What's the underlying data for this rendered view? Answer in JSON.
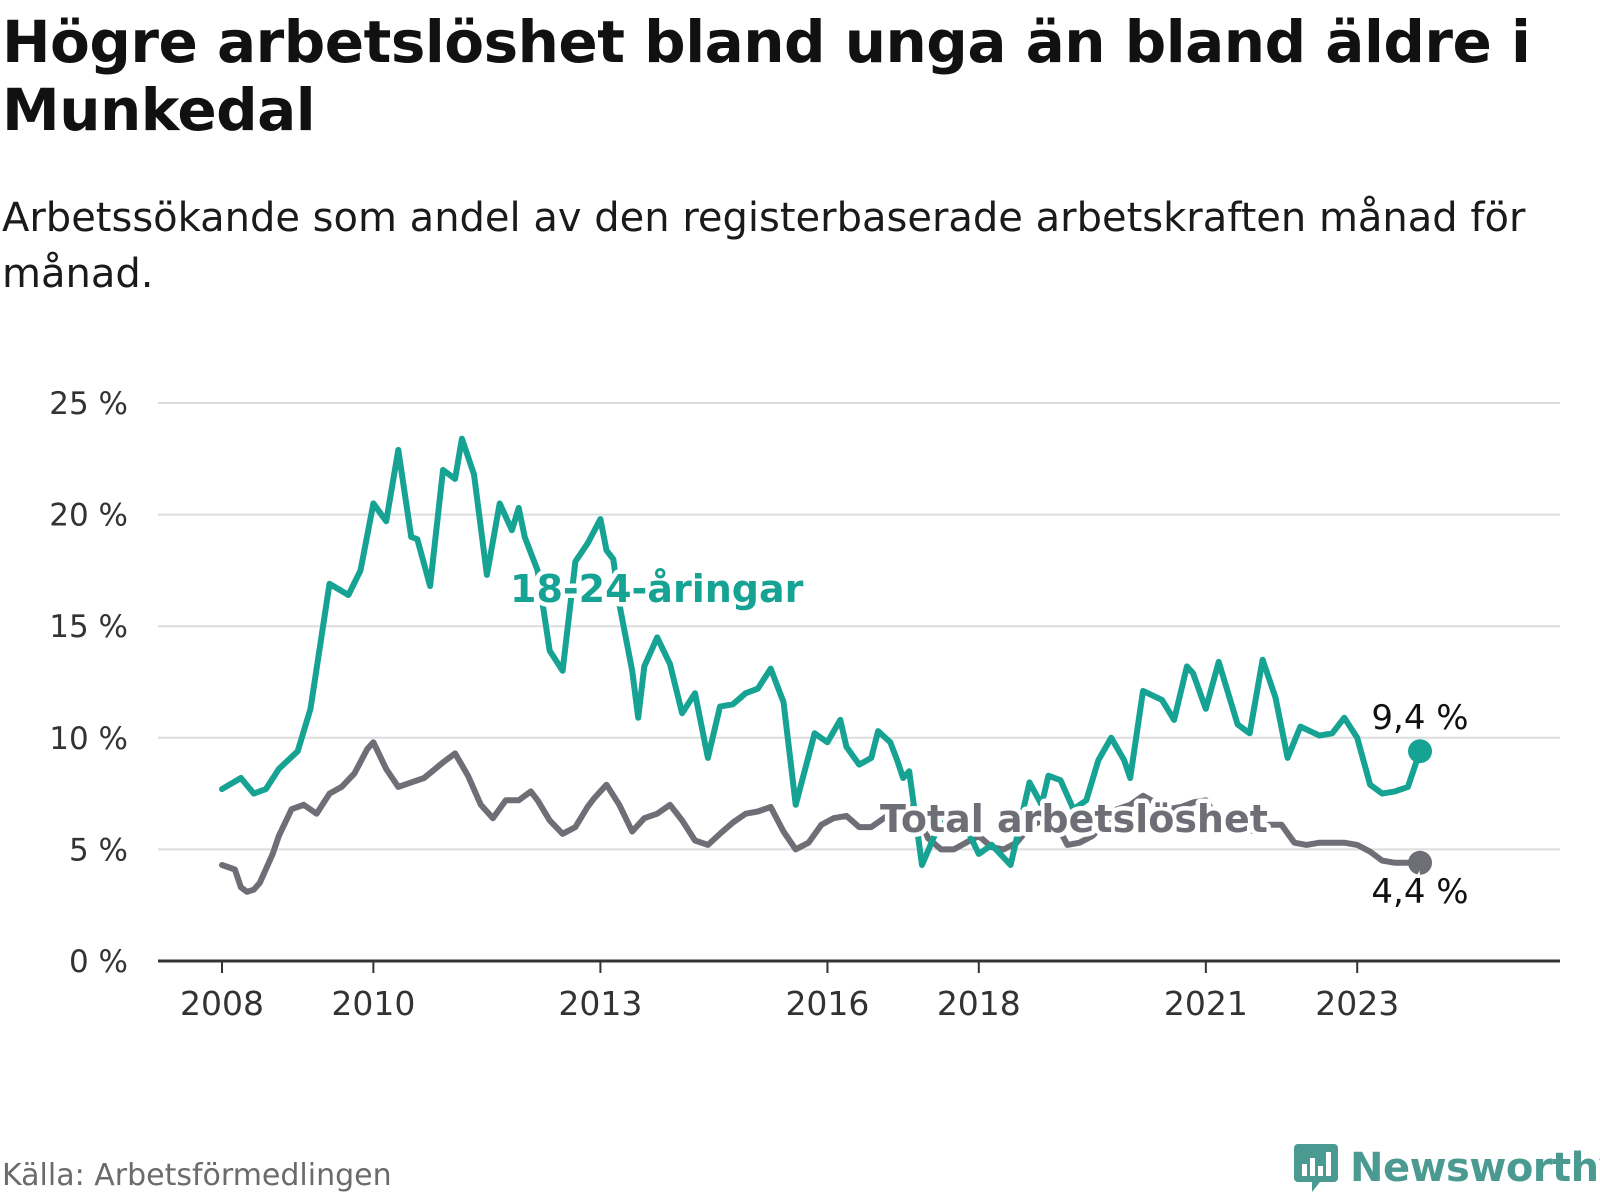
{
  "title": "Högre arbetslöshet bland unga än bland äldre i Munkedal",
  "subtitle": "Arbetssökande som andel av den registerbaserade arbetskraften månad för månad.",
  "source": "Källa: Arbetsförmedlingen",
  "brand": {
    "name": "Newsworthy",
    "icon": "newsworthy-logo-icon"
  },
  "colors": {
    "youth": "#16a394",
    "total": "#6e6e76",
    "grid": "#dddddd",
    "axis": "#333333"
  },
  "chart_data": {
    "type": "line",
    "title": "Högre arbetslöshet bland unga än bland äldre i Munkedal",
    "xlabel": "",
    "ylabel": "",
    "ylim": [
      0,
      25
    ],
    "xlim": [
      2008,
      2024.9
    ],
    "yticks": [
      0,
      5,
      10,
      15,
      20,
      25
    ],
    "ytick_labels": [
      "0 %",
      "5 %",
      "10 %",
      "15 %",
      "20 %",
      "25 %"
    ],
    "xticks": [
      2008,
      2010,
      2013,
      2016,
      2018,
      2021,
      2023
    ],
    "xtick_labels": [
      "2008",
      "2010",
      "2013",
      "2016",
      "2018",
      "2021",
      "2023"
    ],
    "grid": true,
    "series": [
      {
        "name": "18-24-åringar",
        "label": "18-24-åringar",
        "end_label": "9,4 %",
        "x": [
          2008.0,
          2008.25,
          2008.42,
          2008.58,
          2008.75,
          2009.0,
          2009.17,
          2009.42,
          2009.67,
          2009.83,
          2010.0,
          2010.17,
          2010.33,
          2010.5,
          2010.58,
          2010.75,
          2010.92,
          2011.08,
          2011.17,
          2011.33,
          2011.5,
          2011.67,
          2011.83,
          2011.92,
          2012.0,
          2012.17,
          2012.33,
          2012.5,
          2012.67,
          2012.83,
          2013.0,
          2013.08,
          2013.17,
          2013.25,
          2013.42,
          2013.5,
          2013.58,
          2013.75,
          2013.92,
          2014.08,
          2014.25,
          2014.42,
          2014.58,
          2014.75,
          2014.92,
          2015.08,
          2015.25,
          2015.42,
          2015.58,
          2015.83,
          2016.0,
          2016.17,
          2016.25,
          2016.42,
          2016.58,
          2016.67,
          2016.83,
          2016.92,
          2017.0,
          2017.08,
          2017.25,
          2017.5,
          2017.67,
          2017.83,
          2018.0,
          2018.17,
          2018.42,
          2018.67,
          2018.83,
          2018.92,
          2019.08,
          2019.25,
          2019.42,
          2019.58,
          2019.75,
          2019.92,
          2020.0,
          2020.17,
          2020.42,
          2020.58,
          2020.75,
          2020.83,
          2021.0,
          2021.17,
          2021.42,
          2021.58,
          2021.75,
          2021.92,
          2022.08,
          2022.25,
          2022.5,
          2022.67,
          2022.83,
          2023.0,
          2023.17,
          2023.33,
          2023.5,
          2023.67,
          2023.83
        ],
        "values": [
          7.7,
          8.2,
          7.5,
          7.7,
          8.6,
          9.4,
          11.3,
          16.9,
          16.4,
          17.5,
          20.5,
          19.7,
          22.9,
          19.0,
          18.9,
          16.8,
          22.0,
          21.6,
          23.4,
          21.8,
          17.3,
          20.5,
          19.3,
          20.3,
          19.0,
          17.5,
          13.9,
          13.0,
          17.9,
          18.7,
          19.8,
          18.4,
          18.0,
          16.0,
          13.0,
          10.9,
          13.2,
          14.5,
          13.3,
          11.1,
          12.0,
          9.1,
          11.4,
          11.5,
          12.0,
          12.2,
          13.1,
          11.6,
          7.0,
          10.2,
          9.8,
          10.8,
          9.6,
          8.8,
          9.1,
          10.3,
          9.8,
          9.0,
          8.2,
          8.5,
          4.3,
          6.3,
          6.5,
          6.0,
          4.8,
          5.2,
          4.3,
          8.0,
          7.0,
          8.3,
          8.1,
          6.8,
          7.2,
          9.0,
          10.0,
          9.0,
          8.2,
          12.1,
          11.7,
          10.8,
          13.2,
          12.9,
          11.3,
          13.4,
          10.6,
          10.2,
          13.5,
          11.8,
          9.1,
          10.5,
          10.1,
          10.2,
          10.9,
          10.0,
          7.9,
          7.5,
          7.6,
          7.8,
          9.4
        ]
      },
      {
        "name": "Total arbetslöshet",
        "label": "Total arbetslöshet",
        "end_label": "4,4 %",
        "x": [
          2008.0,
          2008.17,
          2008.25,
          2008.33,
          2008.42,
          2008.5,
          2008.67,
          2008.75,
          2008.92,
          2009.08,
          2009.25,
          2009.42,
          2009.58,
          2009.75,
          2009.92,
          2010.0,
          2010.17,
          2010.33,
          2010.5,
          2010.67,
          2010.92,
          2011.08,
          2011.25,
          2011.42,
          2011.58,
          2011.75,
          2011.92,
          2012.08,
          2012.17,
          2012.33,
          2012.5,
          2012.67,
          2012.83,
          2012.92,
          2013.08,
          2013.25,
          2013.42,
          2013.58,
          2013.75,
          2013.92,
          2014.08,
          2014.25,
          2014.42,
          2014.58,
          2014.75,
          2014.92,
          2015.08,
          2015.25,
          2015.42,
          2015.58,
          2015.75,
          2015.92,
          2016.08,
          2016.25,
          2016.42,
          2016.58,
          2016.83,
          2017.0,
          2017.17,
          2017.33,
          2017.5,
          2017.67,
          2017.83,
          2018.0,
          2018.17,
          2018.33,
          2018.5,
          2018.67,
          2018.83,
          2019.0,
          2019.17,
          2019.33,
          2019.5,
          2019.67,
          2019.83,
          2020.0,
          2020.17,
          2020.33,
          2020.5,
          2020.67,
          2020.83,
          2021.0,
          2021.17,
          2021.33,
          2021.5,
          2021.67,
          2021.83,
          2022.0,
          2022.17,
          2022.33,
          2022.5,
          2022.67,
          2022.83,
          2023.0,
          2023.17,
          2023.33,
          2023.5,
          2023.67,
          2023.83
        ],
        "values": [
          4.3,
          4.1,
          3.3,
          3.1,
          3.2,
          3.5,
          4.8,
          5.6,
          6.8,
          7.0,
          6.6,
          7.5,
          7.8,
          8.4,
          9.5,
          9.8,
          8.6,
          7.8,
          8.0,
          8.2,
          8.9,
          9.3,
          8.3,
          7.0,
          6.4,
          7.2,
          7.2,
          7.6,
          7.2,
          6.3,
          5.7,
          6.0,
          6.9,
          7.3,
          7.9,
          7.0,
          5.8,
          6.4,
          6.6,
          7.0,
          6.3,
          5.4,
          5.2,
          5.7,
          6.2,
          6.6,
          6.7,
          6.9,
          5.8,
          5.0,
          5.3,
          6.1,
          6.4,
          6.5,
          6.0,
          6.0,
          6.6,
          7.0,
          6.8,
          5.5,
          5.0,
          5.0,
          5.3,
          5.6,
          5.1,
          5.0,
          5.3,
          6.0,
          6.3,
          6.3,
          5.2,
          5.3,
          5.6,
          6.2,
          6.8,
          7.0,
          7.4,
          7.1,
          6.8,
          6.9,
          7.1,
          7.2,
          6.3,
          6.5,
          5.9,
          5.8,
          6.1,
          6.1,
          5.3,
          5.2,
          5.3,
          5.3,
          5.3,
          5.2,
          4.9,
          4.5,
          4.4,
          4.4,
          4.4
        ]
      }
    ]
  }
}
